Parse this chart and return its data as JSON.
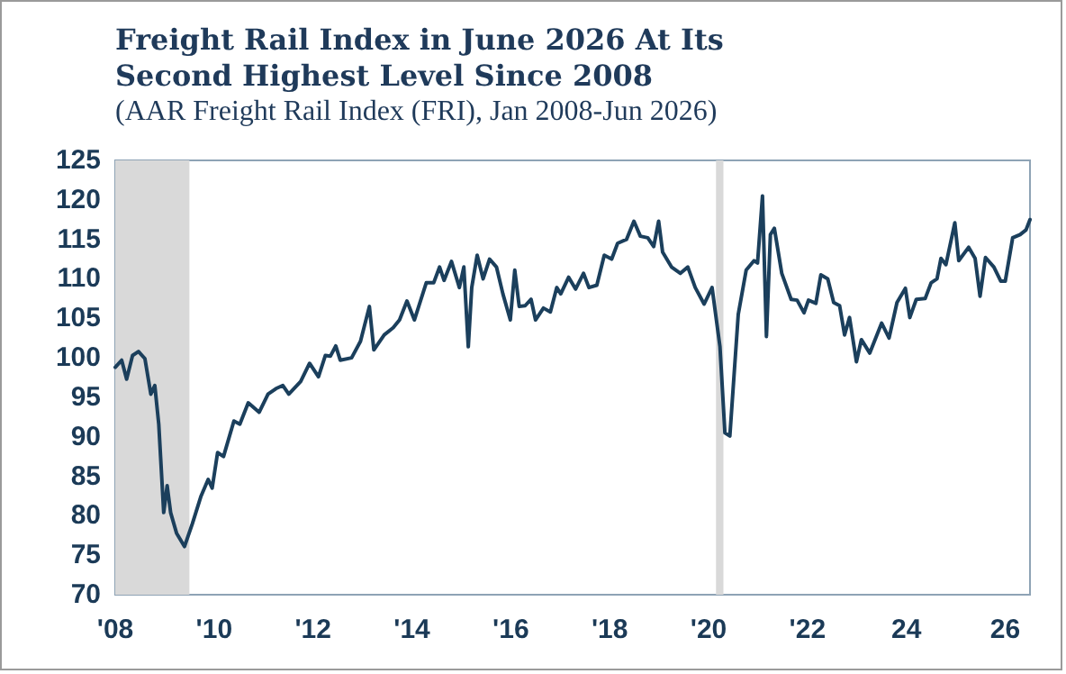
{
  "chart_data": {
    "type": "line",
    "title": "Freight Rail Index in June 2026 At Its Second Highest Level Since 2008",
    "subtitle": "(AAR Freight Rail Index (FRI), Jan 2008-Jun 2026)",
    "series": [
      {
        "color": "#1b3f5c",
        "x": [
          2008.0,
          2008.13,
          2008.23,
          2008.35,
          2008.47,
          2008.6,
          2008.72,
          2008.8,
          2008.88,
          2008.98,
          2009.05,
          2009.12,
          2009.24,
          2009.4,
          2009.56,
          2009.73,
          2009.88,
          2009.96,
          2010.07,
          2010.19,
          2010.4,
          2010.52,
          2010.69,
          2010.91,
          2011.09,
          2011.25,
          2011.39,
          2011.51,
          2011.75,
          2011.93,
          2012.11,
          2012.25,
          2012.35,
          2012.46,
          2012.55,
          2012.78,
          2012.96,
          2013.14,
          2013.23,
          2013.44,
          2013.62,
          2013.75,
          2013.9,
          2014.05,
          2014.29,
          2014.44,
          2014.56,
          2014.65,
          2014.8,
          2014.96,
          2015.05,
          2015.14,
          2015.21,
          2015.32,
          2015.44,
          2015.57,
          2015.71,
          2015.84,
          2015.99,
          2016.08,
          2016.17,
          2016.29,
          2016.41,
          2016.5,
          2016.66,
          2016.8,
          2016.93,
          2017.01,
          2017.17,
          2017.31,
          2017.47,
          2017.58,
          2017.74,
          2017.89,
          2018.04,
          2018.16,
          2018.34,
          2018.49,
          2018.62,
          2018.77,
          2018.89,
          2018.99,
          2019.07,
          2019.25,
          2019.43,
          2019.58,
          2019.73,
          2019.91,
          2020.07,
          2020.23,
          2020.33,
          2020.43,
          2020.6,
          2020.76,
          2020.92,
          2020.99,
          2021.09,
          2021.17,
          2021.25,
          2021.33,
          2021.48,
          2021.67,
          2021.79,
          2021.93,
          2022.02,
          2022.17,
          2022.27,
          2022.41,
          2022.53,
          2022.65,
          2022.75,
          2022.85,
          2022.99,
          2023.09,
          2023.26,
          2023.5,
          2023.65,
          2023.81,
          2023.98,
          2024.07,
          2024.2,
          2024.38,
          2024.5,
          2024.62,
          2024.7,
          2024.8,
          2024.98,
          2025.06,
          2025.26,
          2025.39,
          2025.49,
          2025.6,
          2025.77,
          2025.91,
          2026.0,
          2026.15,
          2026.3,
          2026.42,
          2026.5
        ],
        "values": [
          98.8,
          99.7,
          97.3,
          100.3,
          100.8,
          99.9,
          95.4,
          96.5,
          91.6,
          80.4,
          83.8,
          80.4,
          77.8,
          76.1,
          79.0,
          82.4,
          84.6,
          83.5,
          88.0,
          87.5,
          92.0,
          91.6,
          94.3,
          93.1,
          95.4,
          96.1,
          96.5,
          95.4,
          97.0,
          99.3,
          97.6,
          100.3,
          100.2,
          101.5,
          99.7,
          100.0,
          102.1,
          106.5,
          101.0,
          102.9,
          103.8,
          104.8,
          107.2,
          104.8,
          109.5,
          109.5,
          111.5,
          109.8,
          112.2,
          108.9,
          111.5,
          101.4,
          108.9,
          113.0,
          110.0,
          112.5,
          111.5,
          108.1,
          104.8,
          111.1,
          106.5,
          106.6,
          107.4,
          104.8,
          106.3,
          105.8,
          108.9,
          108.1,
          110.2,
          108.7,
          110.7,
          108.9,
          109.2,
          113.0,
          112.5,
          114.5,
          115.0,
          117.3,
          115.4,
          115.2,
          114.1,
          117.3,
          113.4,
          111.5,
          110.7,
          111.5,
          108.9,
          106.8,
          108.9,
          101.4,
          90.5,
          90.1,
          105.5,
          111.1,
          112.3,
          112.0,
          120.5,
          102.7,
          115.6,
          116.4,
          110.7,
          107.4,
          107.3,
          105.7,
          107.3,
          106.9,
          110.5,
          110.0,
          107.0,
          106.6,
          102.9,
          105.1,
          99.5,
          102.3,
          100.6,
          104.4,
          102.5,
          107.0,
          108.8,
          105.1,
          107.4,
          107.5,
          109.5,
          110.0,
          112.6,
          111.8,
          117.1,
          112.3,
          114.0,
          112.6,
          107.8,
          112.7,
          111.5,
          109.7,
          109.7,
          115.2,
          115.6,
          116.2,
          117.5
        ]
      }
    ],
    "xlim": [
      2008,
      2026.5
    ],
    "xticks": [
      {
        "value": 2008,
        "label": "'08"
      },
      {
        "value": 2010,
        "label": "'10"
      },
      {
        "value": 2012,
        "label": "'12"
      },
      {
        "value": 2014,
        "label": "'14"
      },
      {
        "value": 2016,
        "label": "'16"
      },
      {
        "value": 2018,
        "label": "'18"
      },
      {
        "value": 2020,
        "label": "'20"
      },
      {
        "value": 2022,
        "label": "'22"
      },
      {
        "value": 2024,
        "label": "24"
      },
      {
        "value": 2026,
        "label": "26"
      }
    ],
    "ylim": [
      70,
      125
    ],
    "yticks": [
      70,
      75,
      80,
      85,
      90,
      95,
      100,
      105,
      110,
      115,
      120,
      125
    ],
    "bands": [
      {
        "axis": "x",
        "from": 2008.0,
        "to": 2009.5,
        "color": "#d9d9d9"
      },
      {
        "axis": "x",
        "from": 2020.15,
        "to": 2020.3,
        "color": "#d9d9d9"
      }
    ],
    "grid": false,
    "marker": "none",
    "line_style": "solid"
  }
}
